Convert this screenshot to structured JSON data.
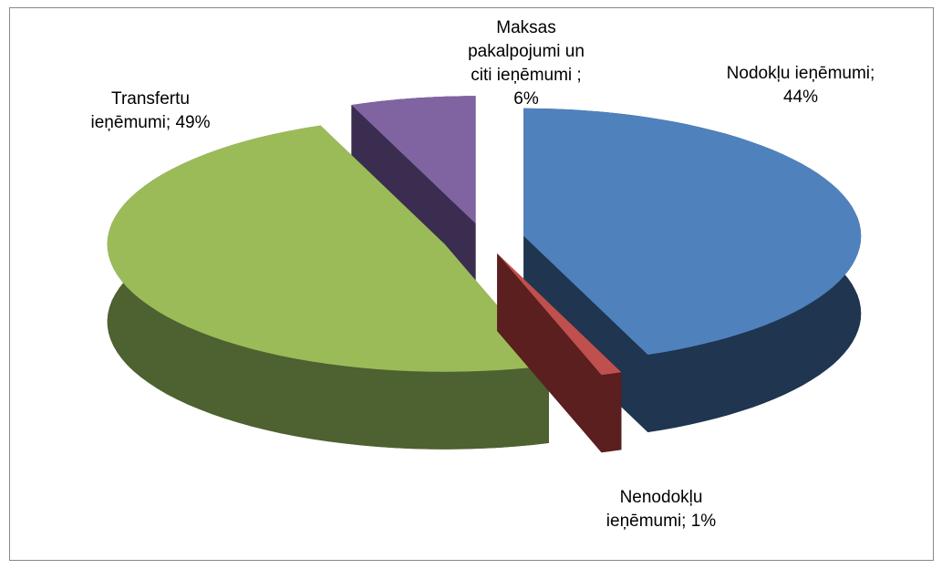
{
  "chart_data": {
    "type": "pie3d",
    "labels": [
      "Nodokļu ieņēmumi; 44%",
      "Nenodokļu ieņēmumi; 1%",
      "Transfertu ieņēmumi; 49%",
      "Maksas pakalpojumi un citi ieņēmumi ; 6%"
    ],
    "values": [
      44,
      1,
      49,
      6
    ],
    "colors": [
      "#4f81bd",
      "#c0504d",
      "#9bbb59",
      "#8064a2"
    ],
    "side_colors": [
      "#1f3550",
      "#5a1f1e",
      "#4e6130",
      "#3a2d4f"
    ]
  }
}
